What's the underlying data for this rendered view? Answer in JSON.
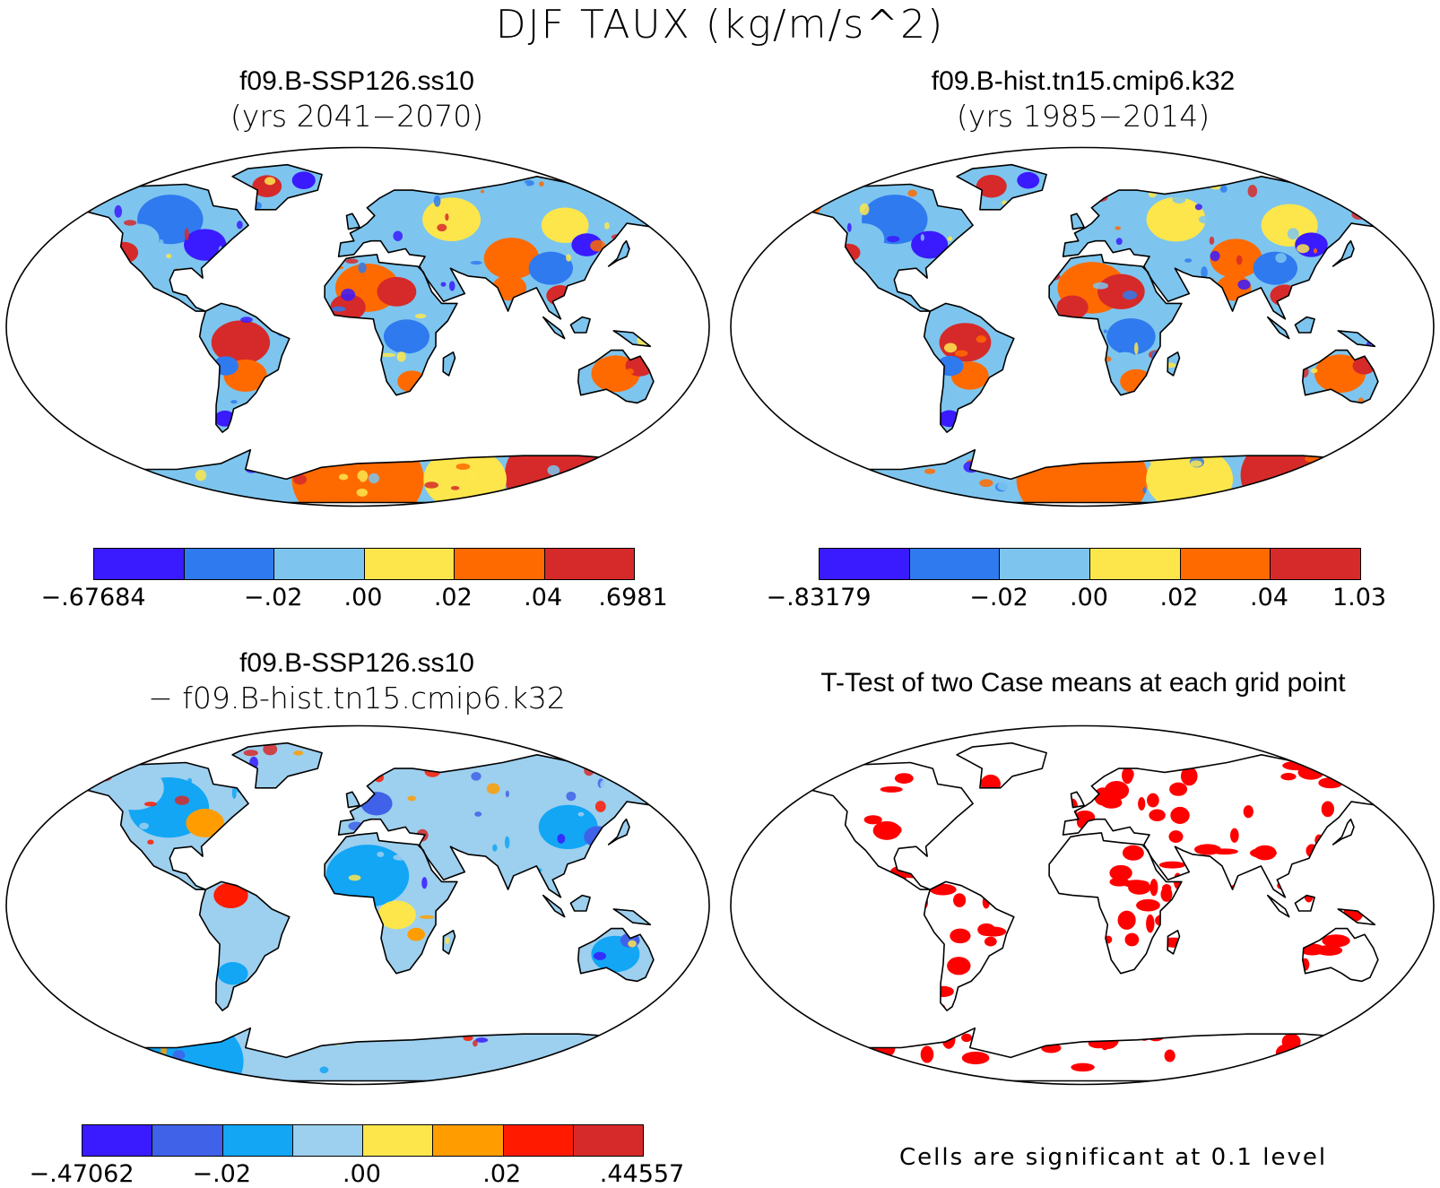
{
  "title": "DJF TAUX (kg/m/s^2)",
  "panels": [
    {
      "title_line1": "f09.B-SSP126.ss10",
      "title_line2": "(yrs 2041−2070)",
      "colorbar": {
        "colors": [
          "#3a1aff",
          "#2f7aee",
          "#7dc5ee",
          "#fde64c",
          "#ff6a00",
          "#d62a2a"
        ],
        "labels": [
          "−.67684",
          "−.02",
          ".00",
          ".02",
          ".04",
          ".6981"
        ]
      }
    },
    {
      "title_line1": "f09.B-hist.tn15.cmip6.k32",
      "title_line2": "(yrs 1985−2014)",
      "colorbar": {
        "colors": [
          "#3a1aff",
          "#2f7aee",
          "#7dc5ee",
          "#fde64c",
          "#ff6a00",
          "#d62a2a"
        ],
        "labels": [
          "−.83179",
          "−.02",
          ".00",
          ".02",
          ".04",
          "1.03"
        ]
      }
    },
    {
      "title_line1": "f09.B-SSP126.ss10",
      "title_line2": "− f09.B-hist.tn15.cmip6.k32",
      "colorbar": {
        "colors": [
          "#3a1aff",
          "#3f62e8",
          "#12a6f5",
          "#9dcfee",
          "#fde64c",
          "#ff9d00",
          "#ff1a00",
          "#d62a2a"
        ],
        "labels": [
          "−.47062",
          "−.02",
          ".00",
          ".02",
          ".44557"
        ]
      }
    },
    {
      "title": "T-Test of two Case means at each grid point",
      "note": "Cells are significant at 0.1 level",
      "sig_color": "#ff0000"
    }
  ]
}
